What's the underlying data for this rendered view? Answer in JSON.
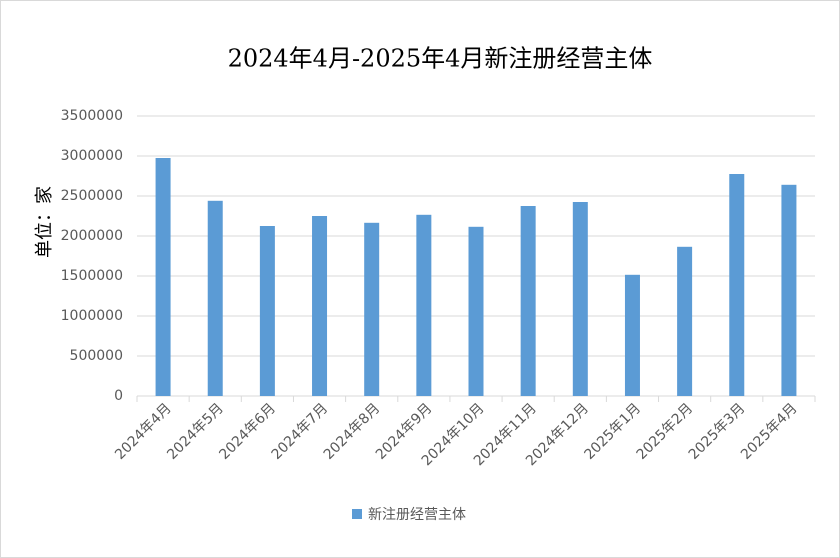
{
  "chart_data": {
    "type": "bar",
    "title": "2024年4月-2025年4月新注册经营主体",
    "y_label": "单位：家",
    "categories": [
      "2024年4月",
      "2024年5月",
      "2024年6月",
      "2024年7月",
      "2024年8月",
      "2024年9月",
      "2024年10月",
      "2024年11月",
      "2024年12月",
      "2025年1月",
      "2025年2月",
      "2025年3月",
      "2025年4月"
    ],
    "series": [
      {
        "name": "新注册经营主体",
        "color": "#5b9bd5",
        "values": [
          2975000,
          2440000,
          2125000,
          2250000,
          2165000,
          2265000,
          2115000,
          2375000,
          2425000,
          1515000,
          1865000,
          2775000,
          2640000
        ]
      }
    ],
    "ylim": [
      0,
      3500000
    ],
    "yticks": [
      0,
      500000,
      1000000,
      1500000,
      2000000,
      2500000,
      3000000,
      3500000
    ],
    "grid": true,
    "legend": "bottom"
  }
}
